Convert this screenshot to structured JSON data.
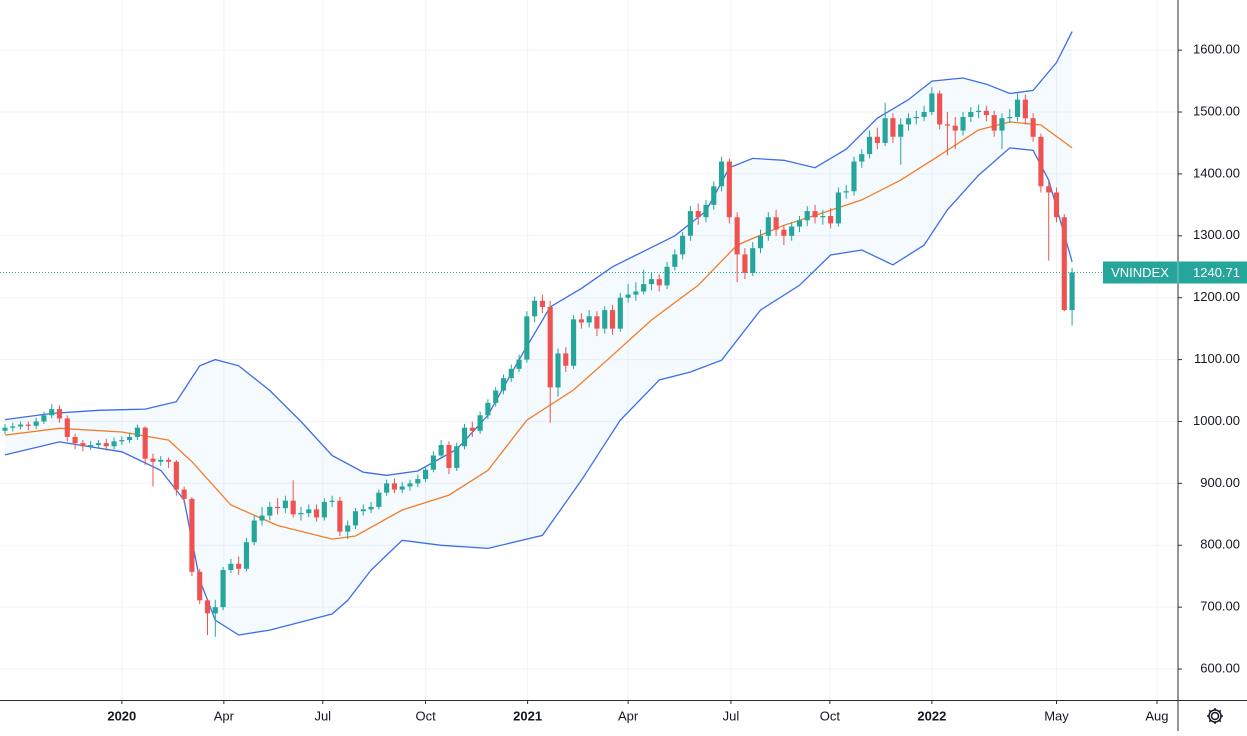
{
  "chart_data": {
    "type": "candlestick",
    "last_label": "VNINDEX",
    "up_color": "#26a69a",
    "down_color": "#ef5350",
    "band_fill": "#2196f3",
    "grid": true,
    "xlim": [
      -0.64,
      150.6
    ],
    "ylim": [
      550,
      1681
    ],
    "xticks": [
      {
        "value": 15,
        "label": "2020"
      },
      {
        "value": 28.1,
        "label": "Apr"
      },
      {
        "value": 40.8,
        "label": "Jul"
      },
      {
        "value": 54,
        "label": "Oct"
      },
      {
        "value": 67.1,
        "label": "2021"
      },
      {
        "value": 80,
        "label": "Apr"
      },
      {
        "value": 93.2,
        "label": "Jul"
      },
      {
        "value": 105.9,
        "label": "Oct"
      },
      {
        "value": 119,
        "label": "2022"
      },
      {
        "value": 135,
        "label": "May"
      },
      {
        "value": 147.9,
        "label": "Aug"
      }
    ],
    "yticks": [
      {
        "value": 600,
        "label": "600.00"
      },
      {
        "value": 700,
        "label": "700.00"
      },
      {
        "value": 800,
        "label": "800.00"
      },
      {
        "value": 900,
        "label": "900.00"
      },
      {
        "value": 1000,
        "label": "1000.00"
      },
      {
        "value": 1100,
        "label": "1100.00"
      },
      {
        "value": 1200,
        "label": "1200.00"
      },
      {
        "value": 1300,
        "label": "1300.00"
      },
      {
        "value": 1400,
        "label": "1400.00"
      },
      {
        "value": 1500,
        "label": "1500.00"
      },
      {
        "value": 1600,
        "label": "1600.00"
      }
    ],
    "x": [
      0,
      1,
      2,
      3,
      4,
      5,
      6,
      7,
      8,
      9,
      10,
      11,
      12,
      13,
      14,
      15,
      16,
      17,
      18,
      19,
      20,
      21,
      22,
      23,
      24,
      25,
      26,
      27,
      28,
      29,
      30,
      31,
      32,
      33,
      34,
      35,
      36,
      37,
      38,
      39,
      40,
      41,
      42,
      43,
      44,
      45,
      46,
      47,
      48,
      49,
      50,
      51,
      52,
      53,
      54,
      55,
      56,
      57,
      58,
      59,
      60,
      61,
      62,
      63,
      64,
      65,
      66,
      67,
      68,
      69,
      70,
      71,
      72,
      73,
      74,
      75,
      76,
      77,
      78,
      79,
      80,
      81,
      82,
      83,
      84,
      85,
      86,
      87,
      88,
      89,
      90,
      91,
      92,
      93,
      94,
      95,
      96,
      97,
      98,
      99,
      100,
      101,
      102,
      103,
      104,
      105,
      106,
      107,
      108,
      109,
      110,
      111,
      112,
      113,
      114,
      115,
      116,
      117,
      118,
      119,
      120,
      121,
      122,
      123,
      124,
      125,
      126,
      127,
      128,
      129,
      130,
      131,
      132,
      133,
      134,
      135,
      136,
      137
    ],
    "open": [
      985,
      990,
      992,
      995,
      993,
      1000,
      1010,
      1020,
      1005,
      975,
      965,
      960,
      962,
      965,
      960,
      968,
      970,
      975,
      990,
      940,
      935,
      938,
      935,
      890,
      875,
      757,
      711,
      690,
      700,
      760,
      770,
      762,
      805,
      840,
      848,
      862,
      860,
      872,
      850,
      852,
      858,
      845,
      870,
      872,
      822,
      832,
      855,
      858,
      862,
      885,
      900,
      890,
      895,
      900,
      907,
      922,
      945,
      962,
      925,
      960,
      990,
      985,
      1010,
      1030,
      1050,
      1070,
      1085,
      1100,
      1170,
      1195,
      1185,
      1055,
      1110,
      1090,
      1165,
      1160,
      1170,
      1150,
      1180,
      1150,
      1200,
      1205,
      1210,
      1222,
      1230,
      1220,
      1250,
      1270,
      1300,
      1340,
      1330,
      1350,
      1380,
      1420,
      1330,
      1270,
      1240,
      1280,
      1300,
      1330,
      1310,
      1300,
      1315,
      1325,
      1340,
      1330,
      1332,
      1320,
      1370,
      1372,
      1420,
      1432,
      1460,
      1450,
      1490,
      1460,
      1480,
      1490,
      1492,
      1500,
      1530,
      1480,
      1478,
      1470,
      1492,
      1500,
      1502,
      1495,
      1470,
      1490,
      1492,
      1520,
      1490,
      1460,
      1380,
      1370,
      1330,
      1180
    ],
    "high": [
      996,
      998,
      1000,
      1000,
      1006,
      1016,
      1028,
      1026,
      1010,
      980,
      970,
      968,
      970,
      972,
      974,
      976,
      982,
      995,
      992,
      948,
      944,
      942,
      938,
      895,
      878,
      762,
      714,
      712,
      765,
      778,
      782,
      812,
      848,
      862,
      870,
      876,
      880,
      905,
      862,
      866,
      866,
      876,
      880,
      878,
      840,
      860,
      866,
      870,
      890,
      906,
      908,
      902,
      906,
      914,
      928,
      952,
      970,
      968,
      966,
      996,
      1000,
      1016,
      1036,
      1056,
      1076,
      1092,
      1108,
      1178,
      1202,
      1205,
      1195,
      1118,
      1120,
      1172,
      1175,
      1180,
      1178,
      1186,
      1188,
      1208,
      1222,
      1225,
      1245,
      1240,
      1238,
      1258,
      1278,
      1306,
      1348,
      1352,
      1358,
      1388,
      1428,
      1425,
      1338,
      1280,
      1290,
      1310,
      1338,
      1342,
      1318,
      1322,
      1332,
      1348,
      1350,
      1342,
      1345,
      1378,
      1382,
      1428,
      1440,
      1470,
      1475,
      1515,
      1498,
      1490,
      1498,
      1502,
      1510,
      1540,
      1535,
      1500,
      1492,
      1500,
      1508,
      1512,
      1510,
      1502,
      1498,
      1505,
      1530,
      1528,
      1498,
      1465,
      1388,
      1378,
      1335,
      1248
    ],
    "low": [
      980,
      984,
      987,
      986,
      988,
      996,
      1005,
      998,
      968,
      955,
      952,
      954,
      956,
      953,
      955,
      962,
      965,
      970,
      930,
      895,
      928,
      925,
      880,
      868,
      750,
      705,
      655,
      652,
      695,
      755,
      752,
      758,
      800,
      832,
      840,
      850,
      852,
      845,
      840,
      845,
      838,
      840,
      862,
      815,
      810,
      826,
      848,
      852,
      858,
      880,
      884,
      884,
      888,
      894,
      902,
      918,
      940,
      915,
      920,
      955,
      975,
      980,
      1004,
      1024,
      1044,
      1064,
      1080,
      1095,
      1160,
      1175,
      998,
      1040,
      1080,
      1085,
      1150,
      1152,
      1138,
      1142,
      1140,
      1145,
      1192,
      1195,
      1205,
      1212,
      1210,
      1214,
      1244,
      1262,
      1292,
      1318,
      1322,
      1342,
      1372,
      1320,
      1225,
      1230,
      1235,
      1272,
      1292,
      1300,
      1285,
      1292,
      1306,
      1316,
      1320,
      1318,
      1312,
      1315,
      1360,
      1365,
      1410,
      1425,
      1440,
      1445,
      1450,
      1415,
      1470,
      1480,
      1485,
      1495,
      1472,
      1430,
      1440,
      1462,
      1484,
      1490,
      1485,
      1460,
      1440,
      1482,
      1485,
      1480,
      1452,
      1370,
      1260,
      1322,
      1178,
      1155
    ],
    "close": [
      990,
      992,
      995,
      993,
      1000,
      1010,
      1020,
      1005,
      975,
      965,
      960,
      962,
      965,
      960,
      968,
      970,
      975,
      990,
      940,
      935,
      938,
      935,
      890,
      875,
      757,
      711,
      690,
      700,
      760,
      770,
      762,
      805,
      840,
      848,
      862,
      860,
      872,
      850,
      852,
      858,
      845,
      870,
      872,
      822,
      832,
      855,
      858,
      862,
      885,
      900,
      890,
      895,
      900,
      907,
      922,
      945,
      962,
      925,
      960,
      990,
      985,
      1010,
      1030,
      1050,
      1070,
      1085,
      1100,
      1170,
      1195,
      1185,
      1055,
      1110,
      1090,
      1165,
      1160,
      1170,
      1150,
      1180,
      1150,
      1200,
      1205,
      1210,
      1222,
      1230,
      1220,
      1250,
      1270,
      1300,
      1340,
      1330,
      1350,
      1380,
      1420,
      1330,
      1270,
      1240,
      1280,
      1300,
      1330,
      1310,
      1300,
      1315,
      1325,
      1340,
      1330,
      1332,
      1320,
      1370,
      1372,
      1420,
      1432,
      1460,
      1450,
      1490,
      1460,
      1480,
      1490,
      1492,
      1500,
      1530,
      1480,
      1478,
      1470,
      1492,
      1500,
      1502,
      1495,
      1470,
      1490,
      1492,
      1520,
      1490,
      1460,
      1380,
      1370,
      1330,
      1180,
      1240.71
    ],
    "bands": {
      "upper": {
        "color": "#3d6ee8",
        "x": [
          0,
          6,
          12,
          18,
          22,
          25,
          27,
          30,
          34,
          38,
          42,
          46,
          49,
          53,
          58,
          62,
          66,
          70,
          74,
          78,
          82,
          86,
          90,
          93,
          96,
          100,
          104,
          108,
          112,
          116,
          119,
          123,
          126,
          129,
          132,
          135,
          137
        ],
        "values": [
          1003,
          1013,
          1018,
          1020,
          1032,
          1090,
          1100,
          1090,
          1050,
          1000,
          945,
          918,
          913,
          920,
          955,
          1010,
          1100,
          1185,
          1215,
          1250,
          1275,
          1300,
          1340,
          1410,
          1425,
          1422,
          1410,
          1440,
          1490,
          1520,
          1550,
          1555,
          1545,
          1530,
          1535,
          1580,
          1630
        ]
      },
      "middle": {
        "color": "#f57c24",
        "x": [
          0,
          7,
          15,
          21,
          24,
          29,
          35,
          42,
          45,
          51,
          57,
          62,
          67,
          73,
          78,
          83,
          89,
          94,
          100,
          105,
          110,
          115,
          120,
          125,
          129,
          133,
          137
        ],
        "values": [
          978,
          989,
          983,
          970,
          935,
          865,
          832,
          810,
          815,
          857,
          881,
          921,
          1002,
          1051,
          1107,
          1164,
          1220,
          1285,
          1317,
          1337,
          1358,
          1390,
          1430,
          1471,
          1484,
          1479,
          1442
        ]
      },
      "lower": {
        "color": "#3d6ee8",
        "x": [
          0,
          7,
          15,
          20,
          23,
          25,
          27,
          30,
          34,
          38,
          42,
          44,
          47,
          51,
          56,
          62,
          69,
          74,
          79,
          84,
          88,
          92,
          97,
          102,
          106,
          110,
          114,
          118,
          121,
          125,
          129,
          132,
          134,
          137
        ],
        "values": [
          946,
          967,
          951,
          921,
          873,
          744,
          679,
          655,
          663,
          676,
          689,
          711,
          760,
          808,
          800,
          795,
          816,
          905,
          1002,
          1067,
          1080,
          1099,
          1180,
          1220,
          1269,
          1277,
          1253,
          1285,
          1342,
          1398,
          1442,
          1438,
          1390,
          1258
        ]
      }
    }
  }
}
